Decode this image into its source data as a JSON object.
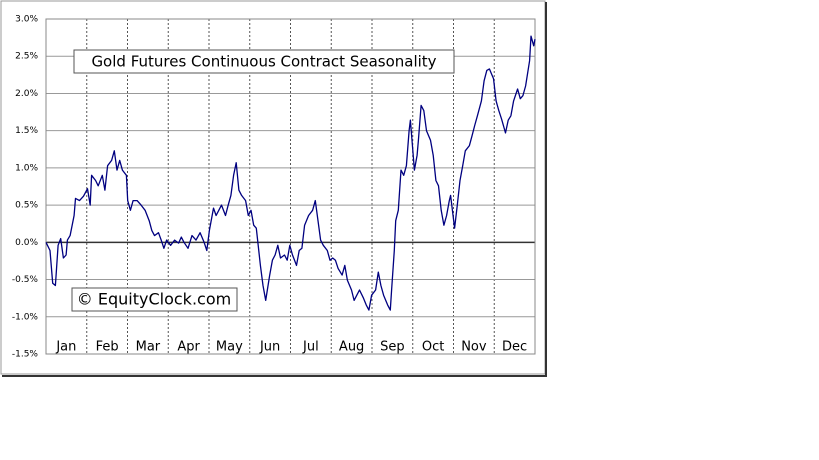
{
  "chart_data": {
    "type": "line",
    "title": "Gold Futures Continuous Contract Seasonality",
    "annotation": "© EquityClock.com",
    "categories": [
      "Jan",
      "Feb",
      "Mar",
      "Apr",
      "May",
      "Jun",
      "Jul",
      "Aug",
      "Sep",
      "Oct",
      "Nov",
      "Dec"
    ],
    "xlim": [
      0,
      365
    ],
    "ylim": [
      -1.5,
      3
    ],
    "yticks": [
      {
        "value": -1.5,
        "label": "-1.5%"
      },
      {
        "value": -1,
        "label": "-1.0%"
      },
      {
        "value": -0.5,
        "label": "-0.5%"
      },
      {
        "value": 0,
        "label": "0.0%"
      },
      {
        "value": 0.5,
        "label": "0.5%"
      },
      {
        "value": 1,
        "label": "1.0%"
      },
      {
        "value": 1.5,
        "label": "1.5%"
      },
      {
        "value": 2,
        "label": "2.0%"
      },
      {
        "value": 2.5,
        "label": "2.5%"
      },
      {
        "value": 3,
        "label": "3.0%"
      }
    ],
    "grid": true,
    "color": "#000080",
    "x": [
      0,
      3,
      5,
      7,
      9,
      11,
      13,
      15,
      16,
      18,
      21,
      22,
      25,
      28,
      31,
      33,
      34,
      37,
      39,
      42,
      44,
      46,
      49,
      51,
      53,
      55,
      57,
      60,
      61,
      63,
      65,
      68,
      71,
      74,
      77,
      79,
      81,
      84,
      86,
      88,
      90,
      93,
      96,
      99,
      101,
      103,
      106,
      109,
      112,
      115,
      118,
      120,
      122,
      125,
      127,
      129,
      131,
      134,
      136,
      138,
      140,
      142,
      144,
      146,
      149,
      151,
      153,
      155,
      157,
      160,
      162,
      164,
      167,
      169,
      171,
      173,
      175,
      178,
      180,
      182,
      184,
      187,
      189,
      191,
      193,
      196,
      199,
      201,
      203,
      205,
      207,
      210,
      212,
      214,
      216,
      218,
      221,
      223,
      225,
      228,
      230,
      232,
      234,
      237,
      239,
      241,
      243,
      246,
      248,
      250,
      252,
      255,
      257,
      258,
      260,
      261,
      263,
      265,
      267,
      269,
      271,
      272,
      275,
      277,
      278,
      280,
      282,
      284,
      287,
      289,
      291,
      293,
      295,
      297,
      299,
      301,
      302,
      305,
      307,
      309,
      311,
      313,
      316,
      318,
      320,
      322,
      325,
      327,
      329,
      331,
      334,
      336,
      338,
      340,
      343,
      345,
      347,
      349,
      352,
      354,
      356,
      358,
      361,
      362,
      364,
      365
    ],
    "values": [
      0,
      -0.11,
      -0.55,
      -0.58,
      -0.04,
      0.05,
      -0.21,
      -0.17,
      0.03,
      0.09,
      0.36,
      0.59,
      0.56,
      0.62,
      0.72,
      0.5,
      0.9,
      0.83,
      0.76,
      0.9,
      0.7,
      1.03,
      1.1,
      1.23,
      0.97,
      1.1,
      0.97,
      0.9,
      0.56,
      0.43,
      0.56,
      0.56,
      0.5,
      0.43,
      0.29,
      0.16,
      0.09,
      0.13,
      0.03,
      -0.08,
      0.03,
      -0.04,
      0.03,
      -0.01,
      0.07,
      0,
      -0.08,
      0.09,
      0.03,
      0.13,
      0,
      -0.11,
      0.16,
      0.46,
      0.36,
      0.43,
      0.5,
      0.36,
      0.5,
      0.63,
      0.9,
      1.07,
      0.7,
      0.63,
      0.56,
      0.36,
      0.43,
      0.23,
      0.19,
      -0.31,
      -0.58,
      -0.78,
      -0.44,
      -0.24,
      -0.17,
      -0.04,
      -0.21,
      -0.17,
      -0.24,
      -0.04,
      -0.17,
      -0.31,
      -0.11,
      -0.08,
      0.23,
      0.36,
      0.43,
      0.56,
      0.29,
      0.03,
      -0.04,
      -0.11,
      -0.24,
      -0.21,
      -0.24,
      -0.35,
      -0.44,
      -0.31,
      -0.51,
      -0.64,
      -0.78,
      -0.71,
      -0.64,
      -0.75,
      -0.84,
      -0.91,
      -0.71,
      -0.64,
      -0.4,
      -0.58,
      -0.71,
      -0.84,
      -0.91,
      -0.64,
      -0.11,
      0.29,
      0.43,
      0.97,
      0.9,
      1.03,
      1.5,
      1.64,
      0.97,
      1.17,
      1.37,
      1.84,
      1.77,
      1.5,
      1.37,
      1.17,
      0.83,
      0.76,
      0.43,
      0.23,
      0.36,
      0.56,
      0.63,
      0.19,
      0.5,
      0.83,
      1.03,
      1.23,
      1.3,
      1.43,
      1.57,
      1.7,
      1.9,
      2.17,
      2.31,
      2.33,
      2.2,
      1.9,
      1.77,
      1.66,
      1.47,
      1.64,
      1.7,
      1.9,
      2.06,
      1.93,
      1.97,
      2.1,
      2.44,
      2.77,
      2.64,
      2.73
    ]
  }
}
